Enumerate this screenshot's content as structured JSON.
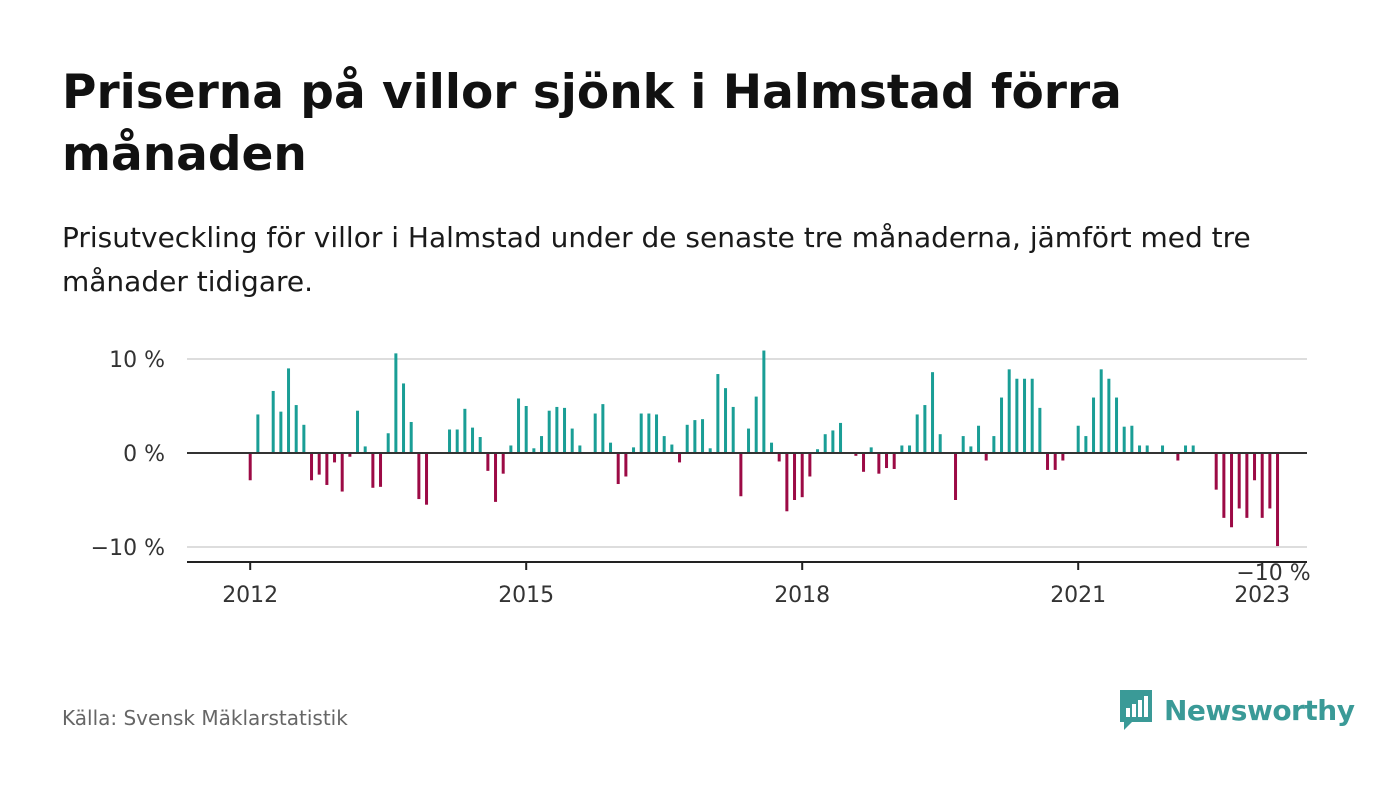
{
  "title": "Priserna på villor sjönk i Halmstad förra månaden",
  "subtitle": "Prisutveckling för villor i Halmstad under de senaste tre månaderna, jämfört med tre månader tidigare.",
  "source": "Källa: Svensk Mäklarstatistik",
  "brand": {
    "name": "Newsworthy",
    "icon": "newsworthy-logo-icon",
    "color": "#3a9a97"
  },
  "colors": {
    "positive": "#1a9e96",
    "negative": "#9c0a45",
    "zero_line": "#333333",
    "grid": "#dddddd"
  },
  "chart_data": {
    "type": "bar",
    "ylim": [
      -11.5,
      10.5
    ],
    "y_ticks": [
      {
        "value": 10,
        "label": "10 %"
      },
      {
        "value": 0,
        "label": "0 %"
      },
      {
        "value": -10,
        "label": "−10 %"
      }
    ],
    "x_ticks": [
      {
        "value": 2012.0,
        "label": "2012"
      },
      {
        "value": 2015.0,
        "label": "2015"
      },
      {
        "value": 2018.0,
        "label": "2018"
      },
      {
        "value": 2021.0,
        "label": "2021"
      },
      {
        "value": 2023.0,
        "label": "2023"
      }
    ],
    "x_range": [
      2011.5,
      2023.6
    ],
    "last_value_label": "−10 %",
    "grid": true,
    "series": [
      {
        "start": "2012-01",
        "values": [
          -2.9,
          4.1,
          0,
          6.6,
          4.4,
          9.0,
          5.1,
          3.0,
          -2.9,
          -2.3,
          -3.4,
          -1.0,
          -4.1,
          -0.4,
          4.5,
          0.7,
          -3.7,
          -3.6,
          2.1,
          10.6,
          7.4,
          3.3,
          -4.9,
          -5.5,
          0,
          0,
          2.5,
          2.5,
          4.7,
          2.7,
          1.7,
          -1.9,
          -5.2,
          -2.2,
          0.8,
          5.8,
          5.0,
          0.5,
          1.8,
          4.5,
          4.9,
          4.8,
          2.6,
          0.8,
          0,
          4.2,
          5.2,
          1.1,
          -3.3,
          -2.5,
          0.6,
          4.2,
          4.2,
          4.1,
          1.8,
          0.9,
          -1.0,
          3.0,
          3.5,
          3.6,
          0.5,
          8.4,
          6.9,
          4.9,
          -4.6,
          2.6,
          6.0,
          10.9,
          1.1,
          -0.9,
          -6.2,
          -5.0,
          -4.7,
          -2.5,
          0.4,
          2.0,
          2.4,
          3.2,
          0,
          -0.3,
          -2.0,
          0.6,
          -2.2,
          -1.6,
          -1.7,
          0.8,
          0.8,
          4.1,
          5.1,
          8.6,
          2.0,
          0,
          -5.0,
          1.8,
          0.7,
          2.9,
          -0.8,
          1.8,
          5.9,
          8.9,
          7.9,
          7.9,
          7.9,
          4.8,
          -1.8,
          -1.8,
          -0.8,
          0,
          2.9,
          1.8,
          5.9,
          8.9,
          7.9,
          5.9,
          2.8,
          2.9,
          0.8,
          0.8,
          0,
          0.8,
          0,
          -0.8,
          0.8,
          0.8,
          0,
          0,
          -3.9,
          -6.9,
          -7.9,
          -5.9,
          -6.9,
          -2.9,
          -6.9,
          -5.9,
          -9.9
        ]
      }
    ]
  }
}
